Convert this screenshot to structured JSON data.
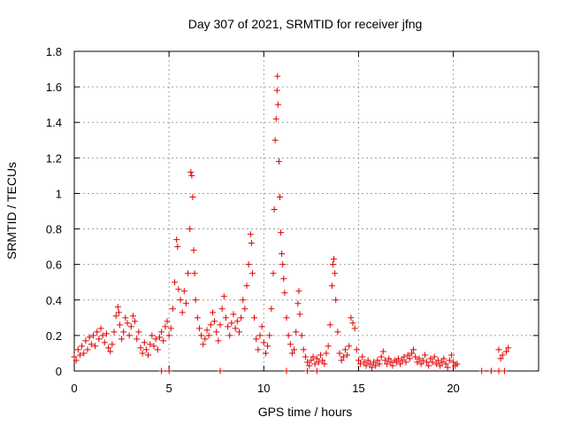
{
  "chart_data": {
    "type": "scatter",
    "title": "Day 307 of 2021, SRMTID for receiver jfng",
    "xlabel": "GPS time / hours",
    "ylabel": "SRMTID / TECUs",
    "xlim": [
      0,
      24.5
    ],
    "ylim": [
      0,
      1.8
    ],
    "xticks": [
      0,
      5,
      10,
      15,
      20
    ],
    "xtick_labels": [
      "0",
      "5",
      "10",
      "15",
      "20"
    ],
    "yticks": [
      0,
      0.2,
      0.4,
      0.6,
      0.8,
      1.0,
      1.2,
      1.4,
      1.6,
      1.8
    ],
    "ytick_labels": [
      "0",
      "0.2",
      "0.4",
      "0.6",
      "0.8",
      "1",
      "1.2",
      "1.4",
      "1.6",
      "1.8"
    ],
    "grid": true,
    "marker": "plus",
    "color": "#e00000",
    "series": [
      {
        "name": "SRMTID",
        "points": [
          [
            0.0,
            0.08
          ],
          [
            0.1,
            0.06
          ],
          [
            0.2,
            0.12
          ],
          [
            0.3,
            0.09
          ],
          [
            0.4,
            0.14
          ],
          [
            0.5,
            0.1
          ],
          [
            0.6,
            0.17
          ],
          [
            0.7,
            0.12
          ],
          [
            0.8,
            0.19
          ],
          [
            0.9,
            0.15
          ],
          [
            1.0,
            0.2
          ],
          [
            1.1,
            0.14
          ],
          [
            1.2,
            0.22
          ],
          [
            1.3,
            0.18
          ],
          [
            1.4,
            0.24
          ],
          [
            1.5,
            0.2
          ],
          [
            1.6,
            0.16
          ],
          [
            1.7,
            0.21
          ],
          [
            1.8,
            0.13
          ],
          [
            1.9,
            0.11
          ],
          [
            2.0,
            0.15
          ],
          [
            2.1,
            0.22
          ],
          [
            2.2,
            0.31
          ],
          [
            2.3,
            0.36
          ],
          [
            2.35,
            0.33
          ],
          [
            2.4,
            0.26
          ],
          [
            2.5,
            0.18
          ],
          [
            2.6,
            0.22
          ],
          [
            2.7,
            0.3
          ],
          [
            2.8,
            0.27
          ],
          [
            2.9,
            0.2
          ],
          [
            3.0,
            0.25
          ],
          [
            3.1,
            0.31
          ],
          [
            3.2,
            0.28
          ],
          [
            3.3,
            0.18
          ],
          [
            3.4,
            0.22
          ],
          [
            3.5,
            0.13
          ],
          [
            3.6,
            0.1
          ],
          [
            3.7,
            0.16
          ],
          [
            3.8,
            0.12
          ],
          [
            3.9,
            0.09
          ],
          [
            4.0,
            0.15
          ],
          [
            4.1,
            0.2
          ],
          [
            4.2,
            0.14
          ],
          [
            4.3,
            0.18
          ],
          [
            4.4,
            0.12
          ],
          [
            4.5,
            0.19
          ],
          [
            4.6,
            0.22
          ],
          [
            4.7,
            0.17
          ],
          [
            4.8,
            0.25
          ],
          [
            4.9,
            0.28
          ],
          [
            5.0,
            0.2
          ],
          [
            5.1,
            0.24
          ],
          [
            5.2,
            0.35
          ],
          [
            5.3,
            0.5
          ],
          [
            5.4,
            0.74
          ],
          [
            5.45,
            0.7
          ],
          [
            5.5,
            0.46
          ],
          [
            5.6,
            0.4
          ],
          [
            5.7,
            0.33
          ],
          [
            5.8,
            0.45
          ],
          [
            5.9,
            0.38
          ],
          [
            6.0,
            0.55
          ],
          [
            6.1,
            0.8
          ],
          [
            6.15,
            1.12
          ],
          [
            6.2,
            1.1
          ],
          [
            6.25,
            0.98
          ],
          [
            6.3,
            0.68
          ],
          [
            6.35,
            0.55
          ],
          [
            6.4,
            0.4
          ],
          [
            6.5,
            0.3
          ],
          [
            6.6,
            0.24
          ],
          [
            6.7,
            0.2
          ],
          [
            6.8,
            0.15
          ],
          [
            6.9,
            0.18
          ],
          [
            7.0,
            0.23
          ],
          [
            7.1,
            0.2
          ],
          [
            7.2,
            0.26
          ],
          [
            7.3,
            0.33
          ],
          [
            7.4,
            0.28
          ],
          [
            7.5,
            0.22
          ],
          [
            7.6,
            0.17
          ],
          [
            7.7,
            0.26
          ],
          [
            7.8,
            0.35
          ],
          [
            7.9,
            0.42
          ],
          [
            8.0,
            0.3
          ],
          [
            8.1,
            0.25
          ],
          [
            8.2,
            0.2
          ],
          [
            8.3,
            0.27
          ],
          [
            8.4,
            0.32
          ],
          [
            8.5,
            0.24
          ],
          [
            8.6,
            0.28
          ],
          [
            8.7,
            0.22
          ],
          [
            8.8,
            0.3
          ],
          [
            8.9,
            0.4
          ],
          [
            9.0,
            0.35
          ],
          [
            9.1,
            0.48
          ],
          [
            9.2,
            0.6
          ],
          [
            9.3,
            0.77
          ],
          [
            9.35,
            0.72
          ],
          [
            9.4,
            0.55
          ],
          [
            9.5,
            0.3
          ],
          [
            9.6,
            0.18
          ],
          [
            9.7,
            0.12
          ],
          [
            9.8,
            0.2
          ],
          [
            9.9,
            0.25
          ],
          [
            10.0,
            0.16
          ],
          [
            10.1,
            0.1
          ],
          [
            10.2,
            0.14
          ],
          [
            10.3,
            0.2
          ],
          [
            10.4,
            0.35
          ],
          [
            10.5,
            0.55
          ],
          [
            10.55,
            0.91
          ],
          [
            10.6,
            1.3
          ],
          [
            10.65,
            1.42
          ],
          [
            10.7,
            1.58
          ],
          [
            10.72,
            1.66
          ],
          [
            10.75,
            1.5
          ],
          [
            10.8,
            1.18
          ],
          [
            10.85,
            0.98
          ],
          [
            10.9,
            0.78
          ],
          [
            10.95,
            0.66
          ],
          [
            11.0,
            0.6
          ],
          [
            11.05,
            0.52
          ],
          [
            11.1,
            0.44
          ],
          [
            11.2,
            0.3
          ],
          [
            11.3,
            0.2
          ],
          [
            11.4,
            0.15
          ],
          [
            11.5,
            0.1
          ],
          [
            11.6,
            0.12
          ],
          [
            11.7,
            0.22
          ],
          [
            11.8,
            0.38
          ],
          [
            11.85,
            0.45
          ],
          [
            11.9,
            0.32
          ],
          [
            12.0,
            0.2
          ],
          [
            12.1,
            0.12
          ],
          [
            12.2,
            0.08
          ],
          [
            12.3,
            0.05
          ],
          [
            12.4,
            0.03
          ],
          [
            12.5,
            0.06
          ],
          [
            12.6,
            0.08
          ],
          [
            12.7,
            0.04
          ],
          [
            12.8,
            0.07
          ],
          [
            12.9,
            0.05
          ],
          [
            13.0,
            0.09
          ],
          [
            13.1,
            0.06
          ],
          [
            13.2,
            0.04
          ],
          [
            13.3,
            0.1
          ],
          [
            13.4,
            0.14
          ],
          [
            13.5,
            0.26
          ],
          [
            13.6,
            0.48
          ],
          [
            13.65,
            0.6
          ],
          [
            13.7,
            0.63
          ],
          [
            13.75,
            0.55
          ],
          [
            13.8,
            0.4
          ],
          [
            13.9,
            0.22
          ],
          [
            14.0,
            0.1
          ],
          [
            14.1,
            0.06
          ],
          [
            14.2,
            0.08
          ],
          [
            14.3,
            0.12
          ],
          [
            14.4,
            0.09
          ],
          [
            14.5,
            0.14
          ],
          [
            14.6,
            0.3
          ],
          [
            14.7,
            0.27
          ],
          [
            14.8,
            0.24
          ],
          [
            14.9,
            0.12
          ],
          [
            15.0,
            0.06
          ],
          [
            15.1,
            0.04
          ],
          [
            15.2,
            0.08
          ],
          [
            15.3,
            0.05
          ],
          [
            15.4,
            0.03
          ],
          [
            15.5,
            0.06
          ],
          [
            15.6,
            0.04
          ],
          [
            15.7,
            0.02
          ],
          [
            15.8,
            0.05
          ],
          [
            15.9,
            0.03
          ],
          [
            16.0,
            0.06
          ],
          [
            16.1,
            0.04
          ],
          [
            16.2,
            0.08
          ],
          [
            16.3,
            0.11
          ],
          [
            16.4,
            0.06
          ],
          [
            16.5,
            0.04
          ],
          [
            16.6,
            0.07
          ],
          [
            16.7,
            0.05
          ],
          [
            16.8,
            0.03
          ],
          [
            16.9,
            0.06
          ],
          [
            17.0,
            0.05
          ],
          [
            17.1,
            0.07
          ],
          [
            17.2,
            0.04
          ],
          [
            17.3,
            0.06
          ],
          [
            17.4,
            0.08
          ],
          [
            17.5,
            0.05
          ],
          [
            17.6,
            0.09
          ],
          [
            17.7,
            0.07
          ],
          [
            17.8,
            0.1
          ],
          [
            17.9,
            0.12
          ],
          [
            18.0,
            0.08
          ],
          [
            18.1,
            0.05
          ],
          [
            18.2,
            0.07
          ],
          [
            18.3,
            0.04
          ],
          [
            18.4,
            0.06
          ],
          [
            18.5,
            0.09
          ],
          [
            18.6,
            0.05
          ],
          [
            18.7,
            0.03
          ],
          [
            18.8,
            0.07
          ],
          [
            18.9,
            0.05
          ],
          [
            19.0,
            0.08
          ],
          [
            19.1,
            0.04
          ],
          [
            19.2,
            0.06
          ],
          [
            19.3,
            0.03
          ],
          [
            19.4,
            0.05
          ],
          [
            19.5,
            0.07
          ],
          [
            19.6,
            0.04
          ],
          [
            19.7,
            0.02
          ],
          [
            19.8,
            0.06
          ],
          [
            19.9,
            0.09
          ],
          [
            20.0,
            0.05
          ],
          [
            20.1,
            0.03
          ],
          [
            20.2,
            0.04
          ],
          [
            22.4,
            0.12
          ],
          [
            22.5,
            0.07
          ],
          [
            22.6,
            0.09
          ],
          [
            22.8,
            0.11
          ],
          [
            22.9,
            0.13
          ]
        ]
      }
    ],
    "zero_points_x": [
      4.6,
      5.0,
      7.7,
      11.2,
      12.3,
      12.8,
      21.5,
      22.0,
      22.4,
      22.7
    ]
  }
}
